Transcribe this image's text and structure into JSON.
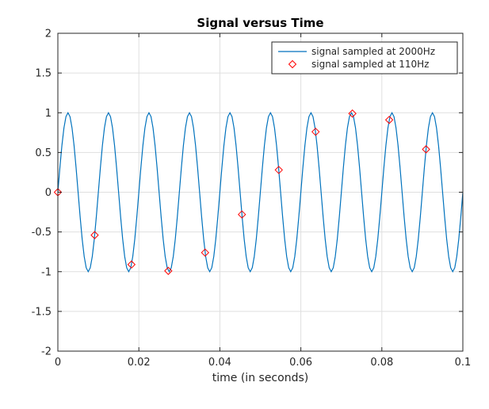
{
  "chart_data": {
    "type": "line",
    "title": "Signal versus Time",
    "xlabel": "time (in seconds)",
    "ylabel": "",
    "xlim": [
      0,
      0.1
    ],
    "ylim": [
      -2,
      2
    ],
    "xticks": [
      0,
      0.02,
      0.04,
      0.06,
      0.08,
      0.1
    ],
    "xtick_labels": [
      "0",
      "0.02",
      "0.04",
      "0.06",
      "0.08",
      "0.1"
    ],
    "yticks": [
      -2,
      -1.5,
      -1,
      -0.5,
      0,
      0.5,
      1,
      1.5,
      2
    ],
    "ytick_labels": [
      "-2",
      "-1.5",
      "-1",
      "-0.5",
      "0",
      "0.5",
      "1",
      "1.5",
      "2"
    ],
    "grid": true,
    "legend_position": "top-right",
    "series": [
      {
        "name": "signal sampled at 2000Hz",
        "style": "line",
        "color": "#0072bd",
        "frequency_hz": 100,
        "sample_rate_hz": 2000,
        "x_start": 0,
        "x_end": 0.1
      },
      {
        "name": "signal sampled at 110Hz",
        "style": "marker-diamond",
        "color": "#ff0000",
        "x": [
          0,
          0.00909,
          0.01818,
          0.02727,
          0.03636,
          0.04545,
          0.05455,
          0.06364,
          0.07273,
          0.08182,
          0.09091
        ],
        "y": [
          0,
          -0.54,
          -0.91,
          -0.99,
          -0.76,
          -0.28,
          0.28,
          0.76,
          0.99,
          0.91,
          0.54
        ]
      }
    ]
  }
}
